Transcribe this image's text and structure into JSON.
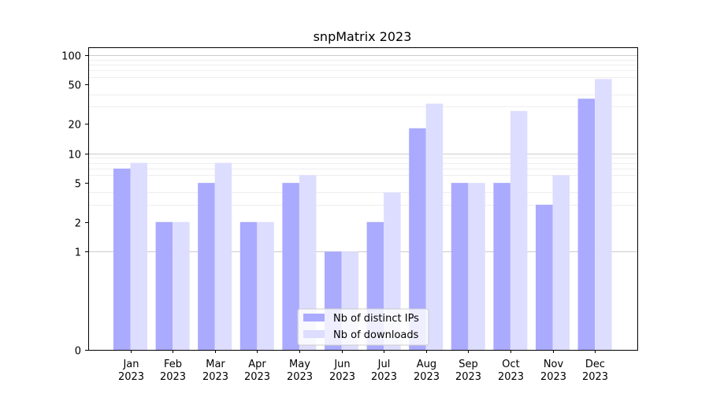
{
  "chart_data": {
    "type": "bar",
    "title": "snpMatrix 2023",
    "scale": "symlog",
    "categories": [
      "Jan\n2023",
      "Feb\n2023",
      "Mar\n2023",
      "Apr\n2023",
      "May\n2023",
      "Jun\n2023",
      "Jul\n2023",
      "Aug\n2023",
      "Sep\n2023",
      "Oct\n2023",
      "Nov\n2023",
      "Dec\n2023"
    ],
    "series": [
      {
        "name": "Nb of distinct IPs",
        "color": "#aaaaff",
        "values": [
          7,
          2,
          5,
          2,
          5,
          1,
          2,
          18,
          5,
          5,
          3,
          36
        ]
      },
      {
        "name": "Nb of downloads",
        "color": "#ddddff",
        "values": [
          8,
          2,
          8,
          2,
          6,
          1,
          4,
          32,
          5,
          27,
          6,
          57
        ]
      }
    ],
    "y_ticks": [
      0,
      1,
      2,
      5,
      10,
      20,
      50,
      100
    ],
    "y_tick_labels": [
      "0",
      "1",
      "2",
      "5",
      "10",
      "20",
      "50",
      "100"
    ],
    "ylim": [
      0,
      120
    ],
    "grid": true,
    "legend_position": "bottom-center"
  }
}
